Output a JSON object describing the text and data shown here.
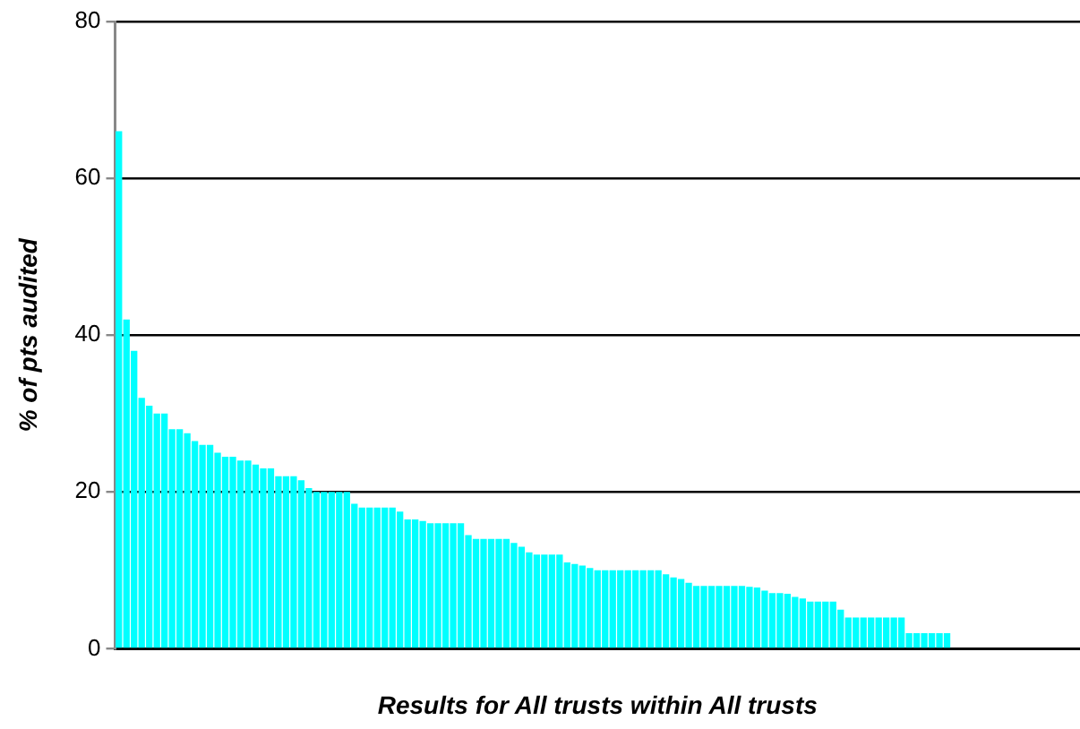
{
  "chart_data": {
    "type": "bar",
    "xlabel": "Results for All trusts within All trusts",
    "ylabel": "% of pts audited",
    "categories": [
      null,
      null,
      null,
      null,
      null,
      null,
      null,
      null,
      null,
      null,
      null,
      null,
      null,
      null,
      null,
      null,
      null,
      null,
      null,
      null,
      null,
      null,
      null,
      null,
      null,
      null,
      null,
      null,
      null,
      null,
      null,
      null,
      null,
      null,
      null,
      null,
      null,
      null,
      null,
      null,
      null,
      null,
      null,
      null,
      null,
      null,
      null,
      null,
      null,
      null,
      null,
      null,
      null,
      null,
      null,
      null,
      null,
      null,
      null,
      null,
      null,
      null,
      null,
      null,
      null,
      null,
      null,
      null,
      null,
      null,
      null,
      null,
      null,
      null,
      null,
      null,
      null,
      null,
      null,
      null,
      null,
      null,
      null,
      null,
      null,
      null,
      null,
      null,
      null,
      null,
      null,
      null,
      null,
      null,
      null,
      null,
      null,
      null,
      null,
      null,
      null,
      null,
      null,
      null,
      null,
      null,
      null,
      null,
      null,
      null,
      null,
      null,
      null,
      null,
      null,
      null,
      null,
      null,
      null,
      null,
      null,
      null,
      null,
      null,
      null,
      null,
      null
    ],
    "values": [
      66,
      42,
      38,
      32,
      31,
      30,
      30,
      28,
      28,
      27.5,
      26.5,
      26,
      26,
      25,
      24.5,
      24.5,
      24,
      24,
      23.5,
      23,
      23,
      22,
      22,
      22,
      21.5,
      20.5,
      20,
      20,
      20,
      20,
      20,
      18.5,
      18,
      18,
      18,
      18,
      18,
      17.5,
      16.5,
      16.5,
      16.3,
      16,
      16,
      16,
      16,
      16,
      14.5,
      14,
      14,
      14,
      14,
      14,
      13.5,
      13,
      12.3,
      12,
      12,
      12,
      12,
      11,
      10.8,
      10.6,
      10.3,
      10,
      10,
      10,
      10,
      10,
      10,
      10,
      10,
      10,
      9.5,
      9.1,
      8.9,
      8.4,
      8,
      8,
      8,
      8,
      8,
      8,
      8,
      7.9,
      7.8,
      7.4,
      7.1,
      7.1,
      7,
      6.6,
      6.4,
      6,
      6,
      6,
      6,
      5,
      4,
      4,
      4,
      4,
      4,
      4,
      4,
      4,
      2,
      2,
      2,
      2,
      2,
      2,
      null,
      null,
      null,
      null,
      null,
      null,
      null,
      null,
      null,
      null,
      null,
      null,
      null,
      null,
      null,
      null,
      null
    ],
    "color": "#00ffff",
    "ylim": [
      0,
      80
    ],
    "yticks": [
      0,
      20,
      40,
      60,
      80
    ],
    "grid": "y"
  }
}
